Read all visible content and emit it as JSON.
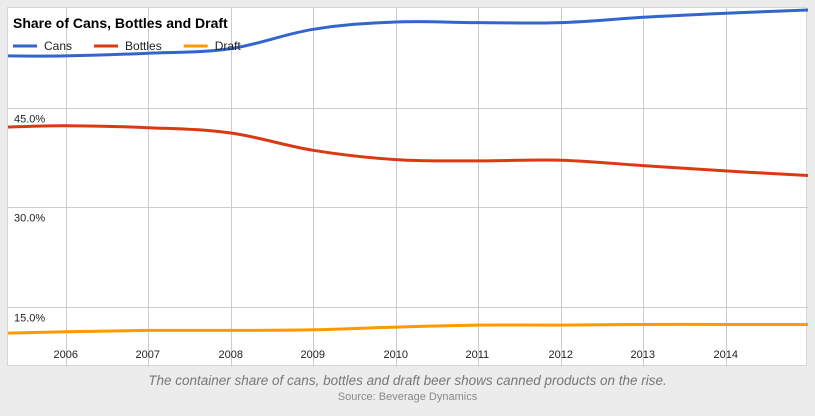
{
  "chart_data": {
    "type": "line",
    "title": "Share of Cans, Bottles and Draft",
    "xlabel": "",
    "ylabel": "",
    "x": [
      2005.3,
      2006,
      2007,
      2008,
      2009,
      2010,
      2011,
      2012,
      2013,
      2014,
      2015.0
    ],
    "categories": [
      "2006",
      "2007",
      "2008",
      "2009",
      "2010",
      "2011",
      "2012",
      "2013",
      "2014"
    ],
    "y_ticks": [
      "15.0%",
      "30.0%",
      "45.0%"
    ],
    "ylim": [
      6,
      60
    ],
    "grid": true,
    "legend_position": "top-left",
    "series": [
      {
        "name": "Cans",
        "color": "#3366cc",
        "values": [
          52.8,
          52.8,
          53.2,
          53.9,
          56.8,
          57.9,
          57.8,
          57.8,
          58.6,
          59.2,
          59.7
        ]
      },
      {
        "name": "Bottles",
        "color": "#dc3912",
        "values": [
          42.1,
          42.3,
          42.0,
          41.2,
          38.6,
          37.2,
          37.0,
          37.1,
          36.3,
          35.5,
          34.8
        ]
      },
      {
        "name": "Draft",
        "color": "#ff9900",
        "values": [
          11.1,
          11.3,
          11.5,
          11.5,
          11.6,
          12.0,
          12.3,
          12.3,
          12.4,
          12.4,
          12.4
        ]
      }
    ]
  },
  "caption": {
    "text": "The container share of cans, bottles and draft beer shows canned products on the rise.",
    "source": "Source: Beverage Dynamics"
  }
}
